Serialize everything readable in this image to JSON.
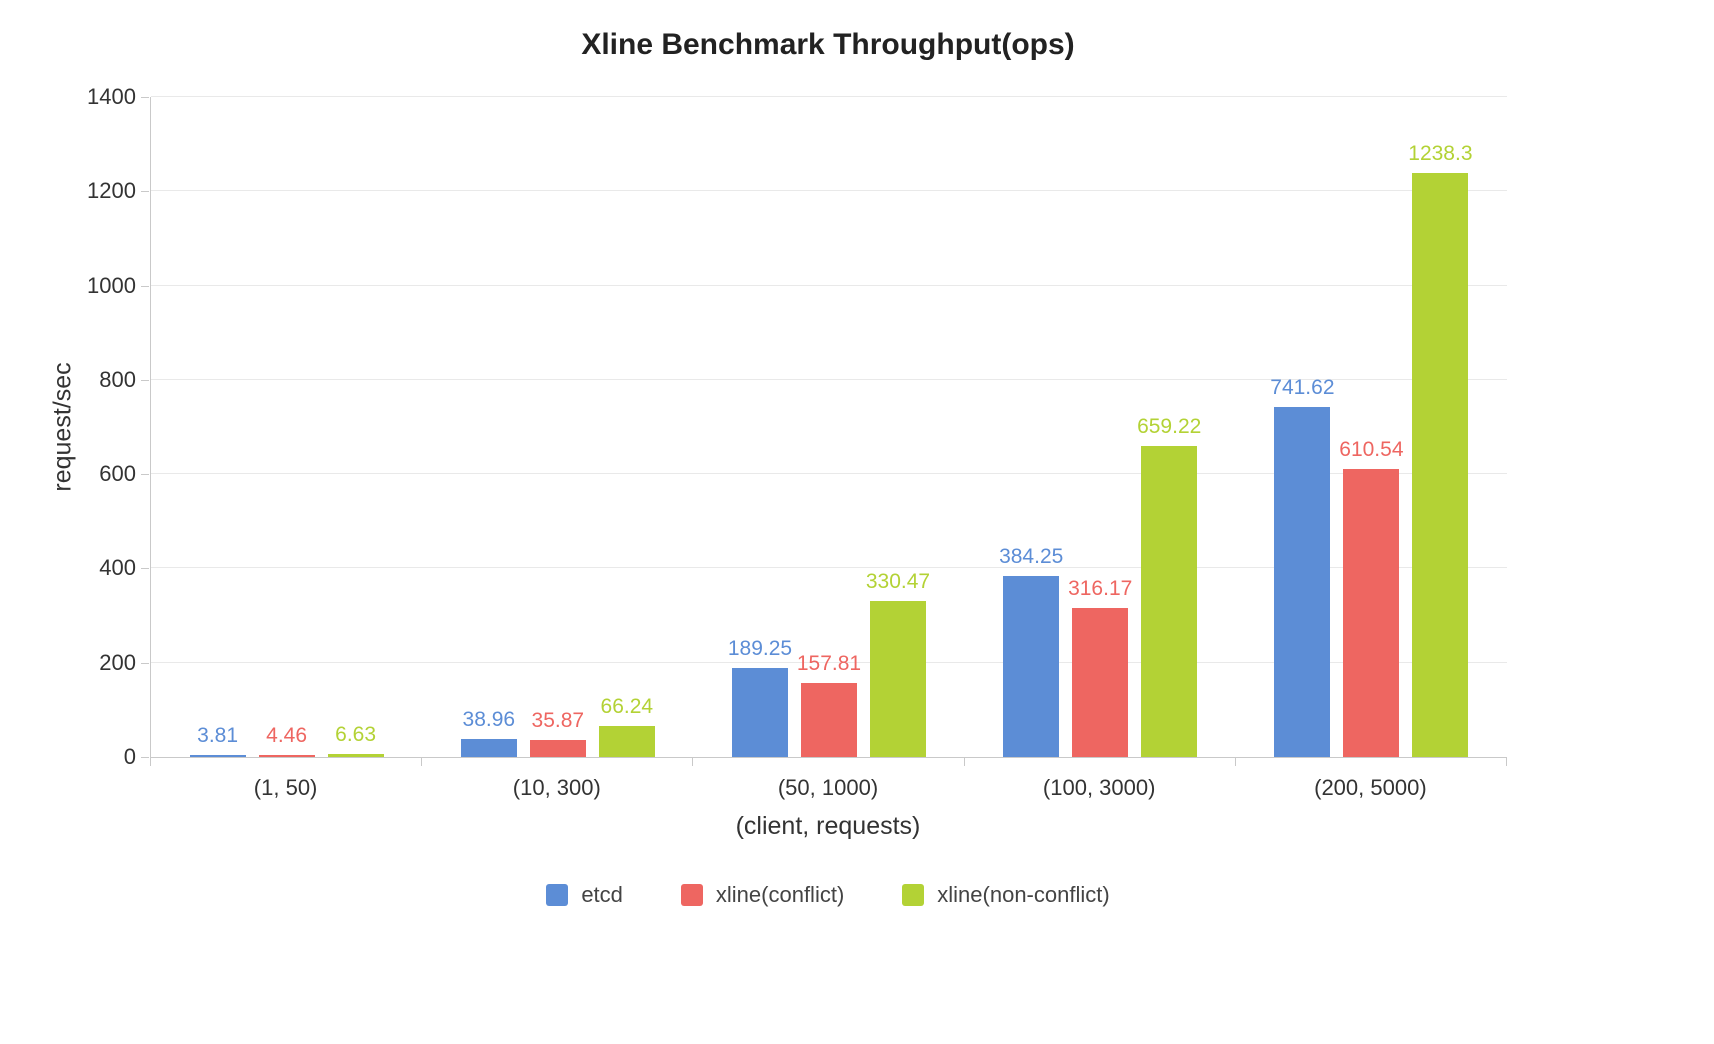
{
  "chart_data": {
    "type": "bar",
    "title": "Xline Benchmark Throughput(ops)",
    "xlabel": "(client, requests)",
    "ylabel": "request/sec",
    "categories": [
      "(1, 50)",
      "(10, 300)",
      "(50, 1000)",
      "(100, 3000)",
      "(200, 5000)"
    ],
    "series": [
      {
        "name": "etcd",
        "color": "#5C8DD6",
        "values": [
          3.81,
          38.96,
          189.25,
          384.25,
          741.62
        ]
      },
      {
        "name": "xline(conflict)",
        "color": "#EE6661",
        "values": [
          4.46,
          35.87,
          157.81,
          316.17,
          610.54
        ]
      },
      {
        "name": "xline(non-conflict)",
        "color": "#B3D235",
        "values": [
          6.63,
          66.24,
          330.47,
          659.22,
          1238.3
        ]
      }
    ],
    "ylim": [
      0,
      1400
    ],
    "ytick_step": 200,
    "grid": true,
    "legend_position": "bottom"
  }
}
